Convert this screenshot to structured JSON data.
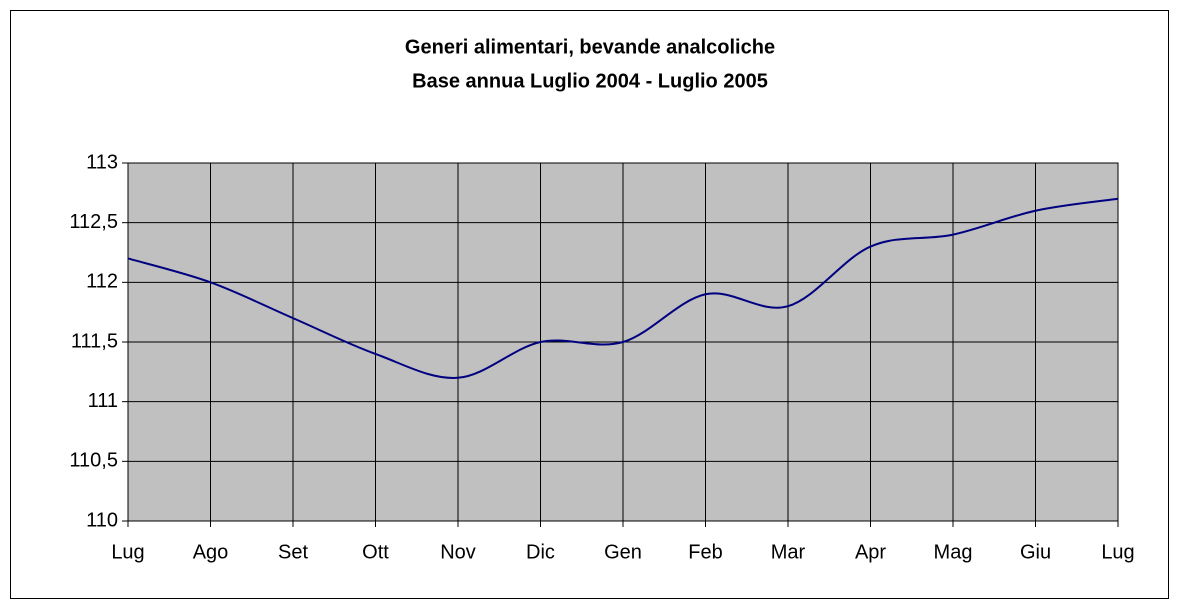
{
  "chart_data": {
    "type": "line",
    "title": "Generi alimentari, bevande analcoliche",
    "subtitle": "Base annua Luglio 2004 - Luglio 2005",
    "categories": [
      "Lug",
      "Ago",
      "Set",
      "Ott",
      "Nov",
      "Dic",
      "Gen",
      "Feb",
      "Mar",
      "Apr",
      "Mag",
      "Giu",
      "Lug"
    ],
    "values": [
      112.2,
      112.0,
      111.7,
      111.4,
      111.2,
      111.5,
      111.5,
      111.9,
      111.8,
      112.3,
      112.4,
      112.6,
      112.7
    ],
    "color": "#000080",
    "smooth": true,
    "grid": true,
    "ylim": [
      110,
      113
    ],
    "yticks": [
      110,
      {
        "value": 110.5,
        "label": "110,5"
      },
      111,
      {
        "value": 111.5,
        "label": "111,5"
      },
      112,
      {
        "value": 112.5,
        "label": "112,5"
      },
      113
    ]
  }
}
